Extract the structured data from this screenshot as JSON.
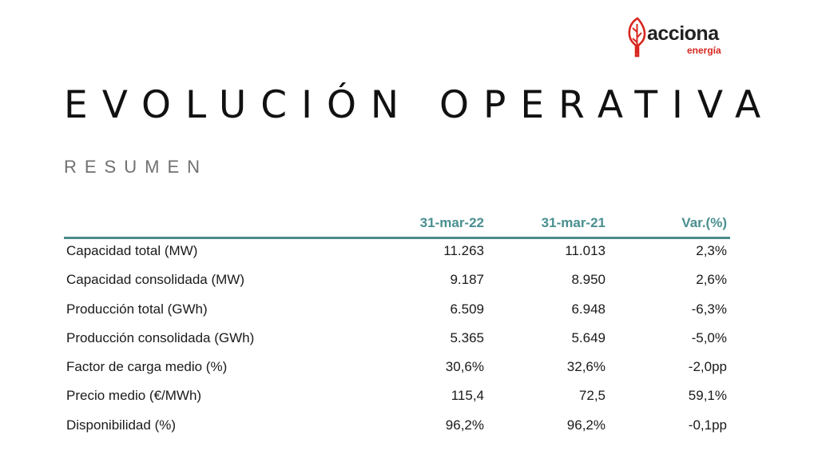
{
  "logo": {
    "name": "acciona",
    "sub": "energía",
    "icon": "acciona-tree-logo-icon",
    "brand_red": "#d7261e"
  },
  "title": "EVOLUCIÓN OPERATIVA",
  "subtitle": "RESUMEN",
  "table": {
    "accent_color": "#4a8c8c",
    "columns": [
      "",
      "31-mar-22",
      "31-mar-21",
      "Var.(%)"
    ],
    "rows": [
      {
        "label": "Capacidad total (MW)",
        "v1": "11.263",
        "v2": "11.013",
        "var": "2,3%"
      },
      {
        "label": "Capacidad consolidada (MW)",
        "v1": "9.187",
        "v2": "8.950",
        "var": "2,6%"
      },
      {
        "label": "Producción total (GWh)",
        "v1": "6.509",
        "v2": "6.948",
        "var": "-6,3%"
      },
      {
        "label": "Producción consolidada (GWh)",
        "v1": "5.365",
        "v2": "5.649",
        "var": "-5,0%"
      },
      {
        "label": "Factor de carga medio (%)",
        "v1": "30,6%",
        "v2": "32,6%",
        "var": "-2,0pp"
      },
      {
        "label": "Precio medio (€/MWh)",
        "v1": "115,4",
        "v2": "72,5",
        "var": "59,1%"
      },
      {
        "label": "Disponibilidad (%)",
        "v1": "96,2%",
        "v2": "96,2%",
        "var": "-0,1pp"
      }
    ]
  }
}
